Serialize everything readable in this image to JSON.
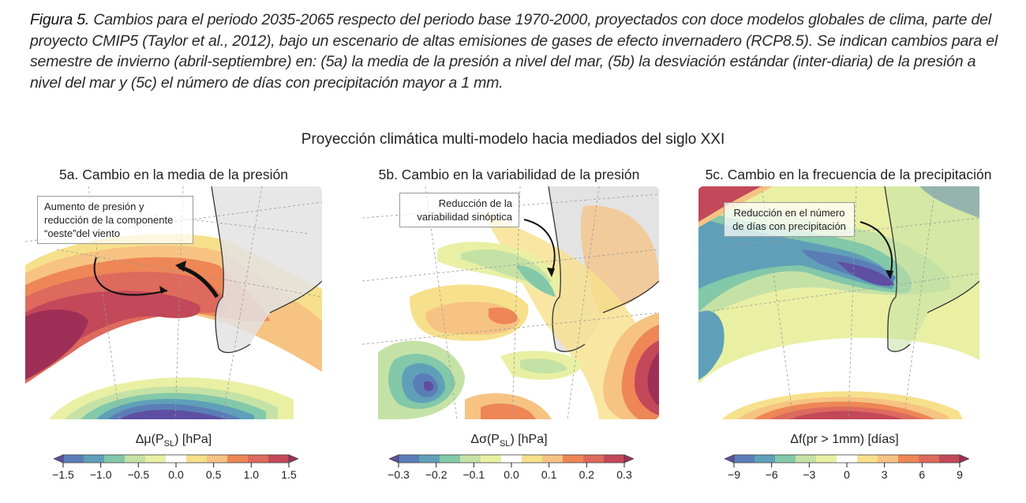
{
  "caption": {
    "figure_label": "Figura 5.",
    "text": " Cambios para el periodo 2035-2065 respecto del periodo base 1970-2000, proyectados con doce modelos globales de clima, parte del proyecto CMIP5 (Taylor et al., 2012), bajo un escenario de altas emisiones de gases de efecto invernadero (RCP8.5). Se indican cambios para el semestre de invierno (abril-septiembre) en: (5a) la media de la presión a nivel del mar, (5b) la desviación estándar (inter-diaria) de la presión a nivel del mar y (5c) el número de días con precipitación mayor a 1 mm."
  },
  "suptitle": "Proyección climática multi-modelo hacia mediados del siglo XXI",
  "chart_data": [
    {
      "type": "heatmap",
      "title": "5a. Cambio en la media de la presión",
      "annotation": "Aumento de presión y reducción de la componente “oeste”del viento",
      "colorbar": {
        "label_main": "Δμ(P",
        "label_sub": "SL",
        "label_end": ")  [hPa]",
        "levels": [
          -1.5,
          -1.25,
          -1.0,
          -0.75,
          -0.5,
          -0.25,
          0.25,
          0.5,
          0.75,
          1.0,
          1.25,
          1.5
        ],
        "ticks": [
          "−1.5",
          "−1.0",
          "−0.5",
          "0.0",
          "0.5",
          "1.0",
          "1.5"
        ],
        "extend": "both",
        "range": [
          -1.5,
          1.5
        ]
      },
      "description": "Positive pressure anomalies (up to >1.5 hPa) across mid-latitude South Pacific and southern South America; negative anomalies (<-1.5 hPa) over Antarctic region"
    },
    {
      "type": "heatmap",
      "title": "5b. Cambio en la variabilidad de la presión",
      "annotation": "Reducción de la variabilidad sinóptica",
      "colorbar": {
        "label_main": "Δσ(P",
        "label_sub": "SL",
        "label_end": ")  [hPa]",
        "levels": [
          -0.3,
          -0.25,
          -0.2,
          -0.15,
          -0.1,
          -0.05,
          0.05,
          0.1,
          0.15,
          0.2,
          0.25,
          0.3
        ],
        "ticks": [
          "−0.3",
          "−0.2",
          "−0.1",
          "0.0",
          "0.1",
          "0.2",
          "0.3"
        ],
        "extend": "both",
        "range": [
          -0.3,
          0.3
        ]
      },
      "description": "Reduced variability off central Chile and southern Patagonia; increased variability over the South Atlantic and Antarctic Peninsula region"
    },
    {
      "type": "heatmap",
      "title": "5c. Cambio en la frecuencia de la precipitación",
      "annotation": "Reducción en el número de días con precipitación",
      "colorbar": {
        "label_main": "Δf(pr > 1mm)  [días",
        "label_sub": "",
        "label_end": "",
        "levels": [
          -9,
          -7.5,
          -6,
          -4.5,
          -3,
          -1.5,
          1.5,
          3,
          4.5,
          6,
          7.5,
          9
        ],
        "ticks": [
          "−9",
          "−6",
          "−3",
          "0",
          "3",
          "6",
          "9"
        ],
        "extend": "both",
        "range": [
          -9,
          9
        ]
      },
      "description": "Fewer precipitation days (down to <-9) over the South Pacific off central-southern Chile; more precipitation days (up to >9) around Antarctica"
    }
  ],
  "colormap": [
    "#5e4fa2",
    "#5b7db6",
    "#5fa0b8",
    "#83c8a9",
    "#c5e2a6",
    "#e9f0a4",
    "#ffffff",
    "#f7e08b",
    "#f6c383",
    "#ee8656",
    "#dd6a5d",
    "#c34859",
    "#9e2f56"
  ],
  "land_color": "#e3e3e3"
}
